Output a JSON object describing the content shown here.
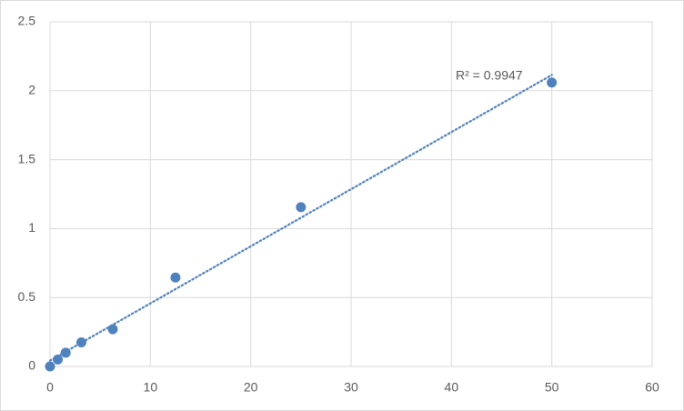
{
  "chart_data": {
    "type": "scatter",
    "x": [
      0,
      0.78,
      1.56,
      3.125,
      6.25,
      12.5,
      25,
      50
    ],
    "values": [
      0,
      0.05,
      0.1,
      0.175,
      0.27,
      0.645,
      1.155,
      2.06
    ],
    "color": "#4f81bd",
    "xlim": [
      0,
      60
    ],
    "xticks": [
      0,
      10,
      20,
      30,
      40,
      50,
      60
    ],
    "ylim": [
      0,
      2.5
    ],
    "yticks": [
      0,
      0.5,
      1,
      1.5,
      2,
      2.5
    ],
    "grid": true,
    "trendline": "linear",
    "annotation": "R² = 0.9947"
  }
}
